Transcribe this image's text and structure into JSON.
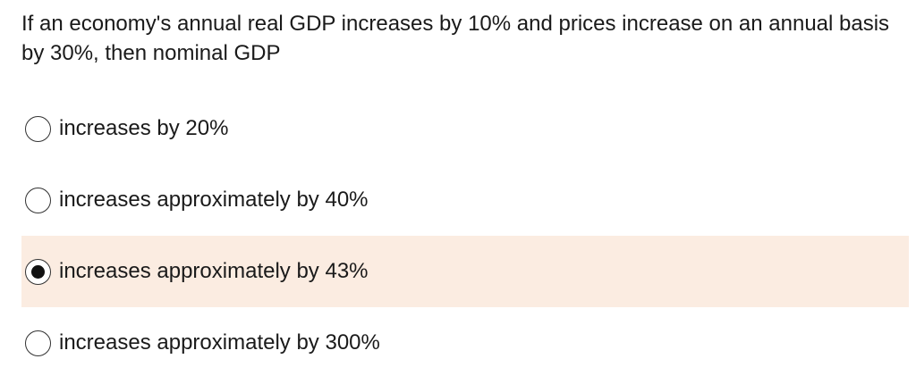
{
  "question": {
    "text": "If an economy's annual real GDP increases by 10% and prices increase on an annual basis by 30%, then nominal GDP"
  },
  "options": [
    {
      "label": "increases by 20%",
      "selected": false
    },
    {
      "label": "increases approximately by 40%",
      "selected": false
    },
    {
      "label": "increases approximately by 43%",
      "selected": true
    },
    {
      "label": "increases approximately by 300%",
      "selected": false
    }
  ],
  "colors": {
    "selected_background": "#fbece1",
    "text": "#1a1a1a",
    "radio_border": "#333333",
    "radio_dot": "#111111"
  }
}
